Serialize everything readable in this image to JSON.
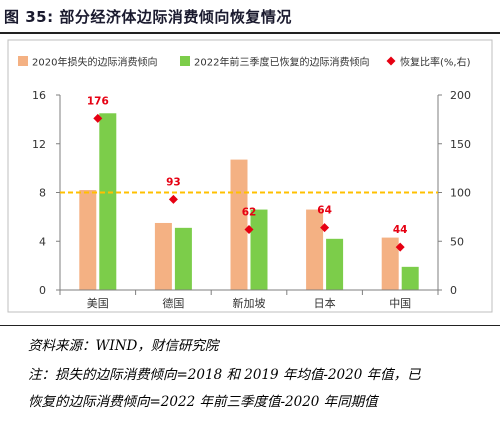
{
  "figure": {
    "title": "图 35:  部分经济体边际消费倾向恢复情况",
    "source": "资料来源：WIND，财信研究院",
    "note_lines": [
      "注：损失的边际消费倾向=2018 和 2019 年均值-2020 年值，已",
      "恢复的边际消费倾向=2022 年前三季度值-2020 年同期值"
    ]
  },
  "colors": {
    "series_2020": "#f4b183",
    "series_2022": "#7ccd4a",
    "ratio_marker": "#e60012",
    "label": "#e60012",
    "ref_line": "#ffc000"
  },
  "chart_data": {
    "type": "bar",
    "categories": [
      "美国",
      "德国",
      "新加坡",
      "日本",
      "中国"
    ],
    "series": [
      {
        "name": "2020年损失的边际消费倾向",
        "axis": "left",
        "values": [
          8.2,
          5.5,
          10.7,
          6.6,
          4.3
        ]
      },
      {
        "name": "2022年前三季度已恢复的边际消费倾向",
        "axis": "left",
        "values": [
          14.5,
          5.1,
          6.6,
          4.2,
          1.9
        ]
      },
      {
        "name": "恢复比率(%,右)",
        "axis": "right",
        "type": "scatter",
        "values": [
          176,
          93,
          62,
          64,
          44
        ]
      }
    ],
    "data_labels": [
      "176",
      "93",
      "62",
      "64",
      "44"
    ],
    "y_left": {
      "min": 0,
      "max": 16,
      "ticks": [
        "0",
        "4",
        "8",
        "12",
        "16"
      ]
    },
    "y_right": {
      "min": 0,
      "max": 200,
      "ticks": [
        "0",
        "50",
        "100",
        "150",
        "200"
      ]
    },
    "reference_line": {
      "axis": "right",
      "value": 100,
      "style": "dashed"
    },
    "legend_position": "top",
    "grid": false
  }
}
